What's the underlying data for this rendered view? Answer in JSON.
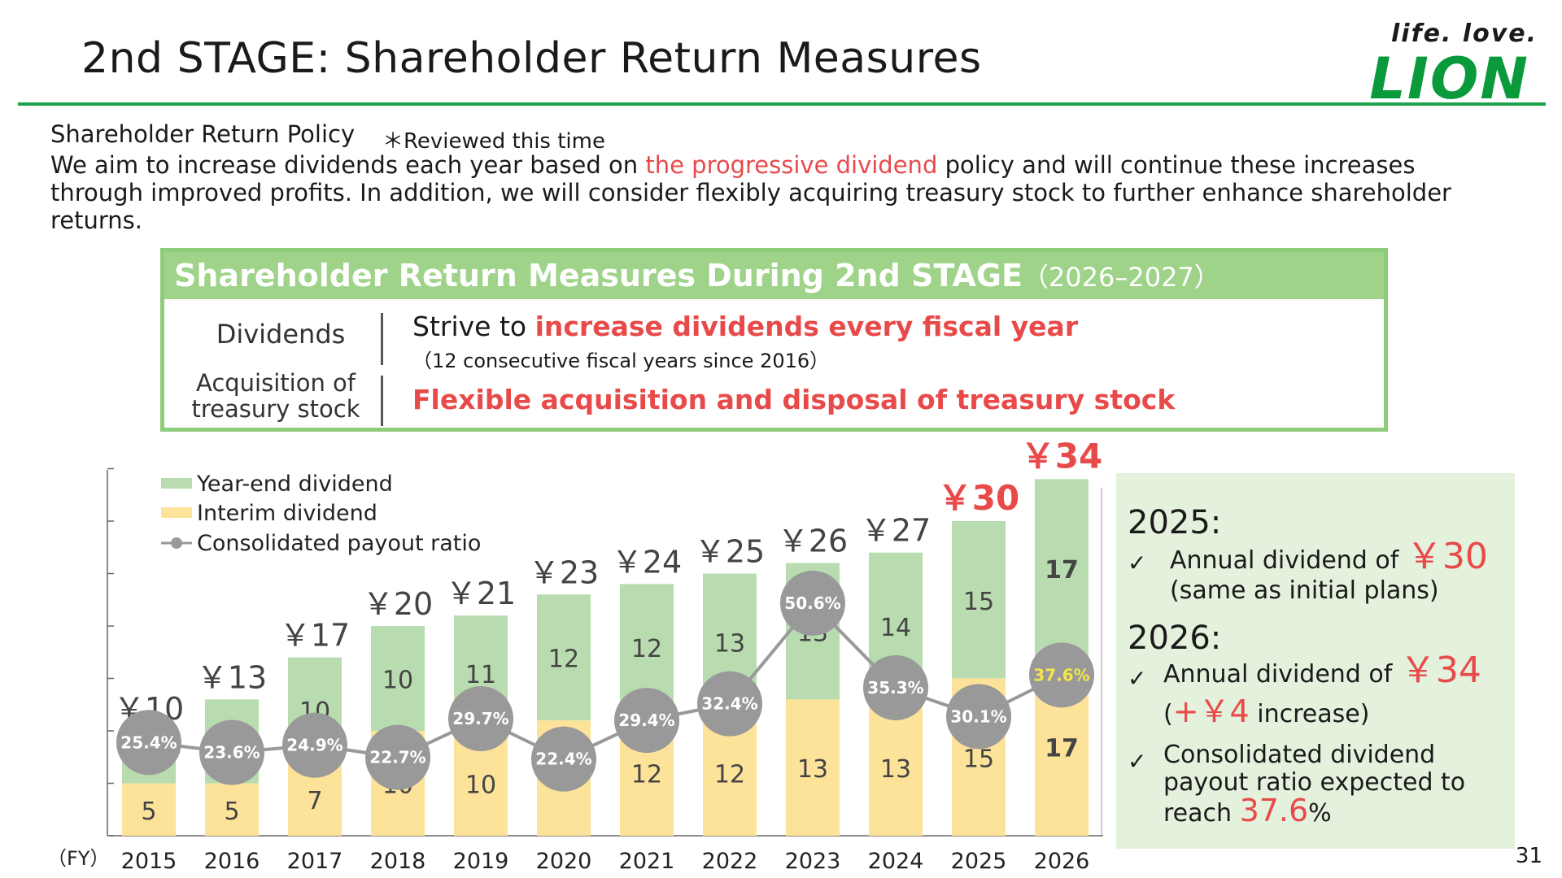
{
  "header": {
    "title": "2nd STAGE: Shareholder Return Measures",
    "logo_tagline": "life. love.",
    "logo_brand": "LION",
    "accent_color": "#1aa34a"
  },
  "policy": {
    "heading": "Shareholder Return Policy",
    "note": "＊Reviewed this time",
    "body_before": "We aim to increase dividends each year based on ",
    "body_highlight": "the progressive dividend",
    "body_after": " policy and will continue these increases through improved profits. In addition, we will consider flexibly acquiring treasury stock to further enhance shareholder returns."
  },
  "measures": {
    "heading": "Shareholder Return Measures During 2nd STAGE",
    "heading_years": "（2026–2027）",
    "dividends_label": "Dividends",
    "dividends_text_before": "Strive to ",
    "dividends_text_highlight": "increase dividends every fiscal year",
    "dividends_subtext": "（12 consecutive fiscal years since 2016）",
    "treasury_label_line1": "Acquisition of",
    "treasury_label_line2": "treasury stock",
    "treasury_text": "Flexible acquisition and disposal of treasury stock"
  },
  "chart_data": {
    "type": "bar",
    "stacked": true,
    "x_unit_label": "（FY）",
    "categories": [
      "2015",
      "2016",
      "2017",
      "2018",
      "2019",
      "2020",
      "2021",
      "2022",
      "2023",
      "2024",
      "2025",
      "2026"
    ],
    "series": [
      {
        "name": "Interim dividend",
        "color": "#fde39a",
        "values": [
          5,
          5,
          7,
          10,
          10,
          11,
          12,
          12,
          13,
          13,
          15,
          17
        ]
      },
      {
        "name": "Year-end dividend",
        "color": "#b8dcb0",
        "values": [
          5,
          8,
          10,
          10,
          11,
          12,
          12,
          13,
          13,
          14,
          15,
          17
        ]
      }
    ],
    "totals": [
      "￥10",
      "￥13",
      "￥17",
      "￥20",
      "￥21",
      "￥23",
      "￥24",
      "￥25",
      "￥26",
      "￥27",
      "￥30",
      "￥34"
    ],
    "payout_ratio": {
      "name": "Consolidated payout ratio",
      "color": "#999999",
      "values": [
        25.4,
        23.6,
        24.9,
        22.7,
        29.7,
        22.4,
        29.4,
        32.4,
        50.6,
        35.3,
        30.1,
        37.6
      ],
      "labels": [
        "25.4%",
        "23.6%",
        "24.9%",
        "22.7%",
        "29.7%",
        "22.4%",
        "29.4%",
        "32.4%",
        "50.6%",
        "35.3%",
        "30.1%",
        "37.6%"
      ]
    },
    "ylim": [
      0,
      35
    ],
    "legend_position": "top-left",
    "highlight_total_color": "#e84a4a",
    "highlight_ratio_color": "#f5e64a"
  },
  "side_panel": {
    "y2025_heading": "2025:",
    "y2025_item1_before": "Annual dividend of ",
    "y2025_item1_value": "￥30",
    "y2025_item1_sub": "(same as initial plans)",
    "y2026_heading": "2026:",
    "y2026_item1_before": "Annual dividend of ",
    "y2026_item1_value": "￥34",
    "y2026_item1_paren_open": "(",
    "y2026_item1_increase": "+￥4",
    "y2026_item1_after": " increase)",
    "y2026_item2_line1": "Consolidated dividend",
    "y2026_item2_line2": "payout ratio expected to",
    "y2026_item2_line3": "reach ",
    "y2026_item2_value": "37.6",
    "y2026_item2_unit": "%",
    "check": "✓"
  },
  "page_number": "31"
}
